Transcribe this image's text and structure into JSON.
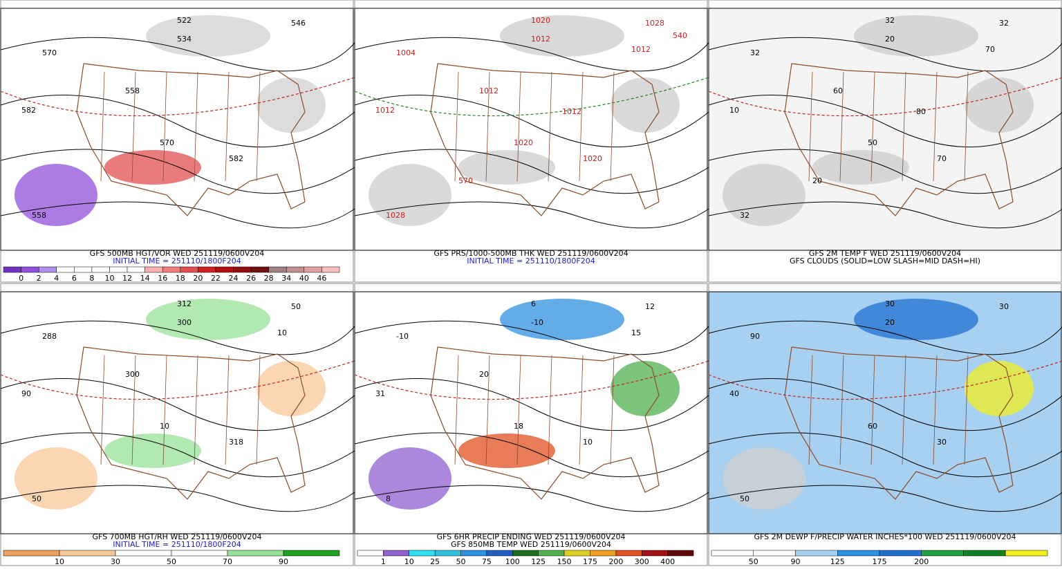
{
  "panels": [
    {
      "caption": [
        "GFS 500MB HGT/VOR WED 251119/0600V204",
        "INITIAL TIME = 251110/1800F204"
      ],
      "caption_colors": [
        "#000000",
        "#2020c0"
      ],
      "background": "#ffffff",
      "map_labels": [
        "570",
        "534",
        "522",
        "546",
        "582",
        "558",
        "570",
        "582",
        "558"
      ],
      "colorbar": {
        "colors": [
          "#7030c0",
          "#9050d8",
          "#b090e8",
          "#ffffff",
          "#ffffff",
          "#ffffff",
          "#ffffff",
          "#ffffff",
          "#f8b0b0",
          "#f08080",
          "#e05050",
          "#d02020",
          "#b01010",
          "#901010",
          "#701010",
          "#a08080",
          "#c09090",
          "#e0a0a0",
          "#f8c0c0"
        ],
        "labels": [
          0,
          2,
          4,
          6,
          8,
          10,
          12,
          14,
          16,
          18,
          20,
          22,
          24,
          26,
          28,
          34,
          40,
          46
        ]
      }
    },
    {
      "caption": [
        "GFS PRS/1000-500MB THK WED 251119/0600V204",
        "INITIAL TIME = 251110/1800F204"
      ],
      "caption_colors": [
        "#000000",
        "#2020c0"
      ],
      "background": "#ffffff",
      "map_labels": [
        "1004",
        "1012",
        "1020",
        "1028",
        "1012",
        "1028",
        "1020",
        "1020",
        "1012",
        "1012",
        "1012",
        "570",
        "540"
      ]
    },
    {
      "caption": [
        "GFS 2M TEMP F WED 251119/0600V204",
        "GFS CLOUDS (SOLID=LOW SLASH=MID DASH=HI)"
      ],
      "caption_colors": [
        "#000000",
        "#000000"
      ],
      "background": "#f4f4f4",
      "map_labels": [
        "32",
        "20",
        "32",
        "32",
        "10",
        "32",
        "50",
        "70",
        "60",
        "70",
        "80",
        "20"
      ]
    },
    {
      "caption": [
        "GFS 700MB HGT/RH WED 251119/0600V204",
        "INITIAL TIME = 251110/1800F204"
      ],
      "caption_colors": [
        "#000000",
        "#2020c0"
      ],
      "background": "#ffffff",
      "map_labels": [
        "288",
        "300",
        "312",
        "50",
        "90",
        "50",
        "10",
        "318",
        "300",
        "10"
      ],
      "colorbar": {
        "colors": [
          "#f0a060",
          "#f8c898",
          "#ffffff",
          "#ffffff",
          "#98e098",
          "#20a020"
        ],
        "labels": [
          10,
          30,
          50,
          70,
          90
        ]
      }
    },
    {
      "caption": [
        "GFS 6HR PRECIP ENDING WED 251119/0600V204",
        "GFS 850MB TEMP WED 251119/0600V204"
      ],
      "caption_colors": [
        "#000000",
        "#000000"
      ],
      "background": "#ffffff",
      "map_labels": [
        "-10",
        "-10",
        "6",
        "12",
        "31",
        "8",
        "18",
        "10",
        "20",
        "15"
      ],
      "colorbar": {
        "colors": [
          "#ffffff",
          "#9060d0",
          "#30e0f0",
          "#30c0e0",
          "#3090e0",
          "#2060c0",
          "#207020",
          "#50b050",
          "#e0d020",
          "#f0a020",
          "#e05020",
          "#a01010",
          "#600808"
        ],
        "labels": [
          1,
          10,
          25,
          50,
          75,
          100,
          125,
          150,
          175,
          200,
          300,
          400
        ]
      }
    },
    {
      "caption": [
        "GFS 2M DEWP F/PRECIP WATER INCHES*100 WED 251119/0600V204"
      ],
      "caption_colors": [
        "#000000"
      ],
      "background": "#a8d0f0",
      "map_labels": [
        "90",
        "20",
        "30",
        "30",
        "40",
        "50",
        "60",
        "30"
      ],
      "colorbar": {
        "colors": [
          "#ffffff",
          "#ffffff",
          "#a8d0f0",
          "#3090e0",
          "#2070d0",
          "#20a040",
          "#108020",
          "#f0f020"
        ],
        "labels": [
          50,
          90,
          125,
          175,
          200
        ]
      }
    }
  ]
}
